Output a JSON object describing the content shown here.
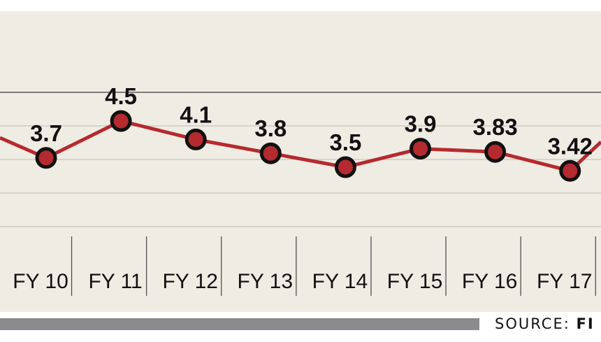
{
  "colors": {
    "background": "#efece4",
    "line": "#b52a2f",
    "marker_fill": "#b52a2f",
    "marker_stroke": "#111111",
    "gridline": "#cfcbc2",
    "top_rule": "#555555",
    "footer_bar": "#8b8b8d"
  },
  "chart_data": {
    "type": "line",
    "title": "",
    "xlabel": "",
    "ylabel": "",
    "categories": [
      "FY 10",
      "FY 11",
      "FY 12",
      "FY 13",
      "FY 14",
      "FY 15",
      "FY 16",
      "FY 17"
    ],
    "series": [
      {
        "values": [
          3.7,
          4.5,
          4.1,
          3.8,
          3.5,
          3.9,
          3.83,
          3.42
        ],
        "labels": [
          "3.7",
          "4.5",
          "4.1",
          "3.8",
          "3.5",
          "3.9",
          "3.83",
          "3.42"
        ]
      }
    ],
    "grid": true,
    "legend": "none"
  },
  "source": {
    "prefix": "SOURCE:",
    "name": "FI"
  }
}
